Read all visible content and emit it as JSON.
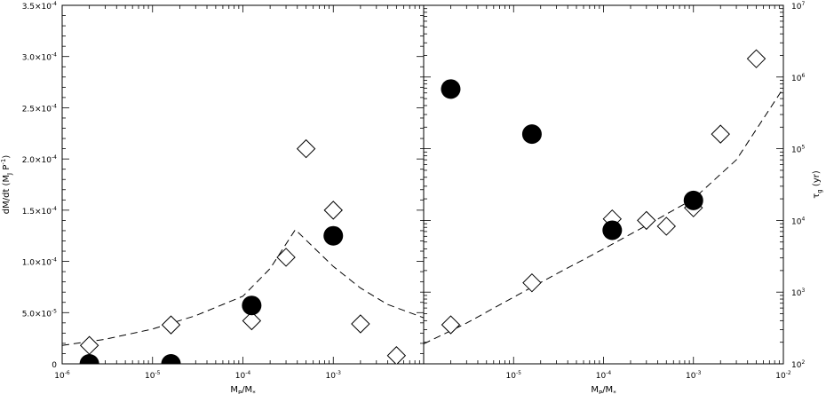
{
  "chart_data": [
    {
      "type": "scatter",
      "panel": "left",
      "title": "",
      "xlabel": "M_P/M_*",
      "ylabel": "dM/dt (M_J P^-1)",
      "xscale": "log",
      "yscale": "linear",
      "xlim": [
        1e-06,
        0.01
      ],
      "ylim": [
        0,
        0.00035
      ],
      "grid": false,
      "legend": "none",
      "x_tick_labels": [
        "10^-6",
        "10^-5",
        "10^-4",
        "10^-3"
      ],
      "y_tick_labels": [
        "0",
        "5.0×10^-5",
        "1.0×10^-4",
        "1.5×10^-4",
        "2.0×10^-4",
        "2.5×10^-4",
        "3.0×10^-4",
        "3.5×10^-4"
      ],
      "series": [
        {
          "marker": "filled-circle",
          "points": [
            {
              "x": 2e-06,
              "y": 0.0
            },
            {
              "x": 1.6e-05,
              "y": 0.0
            },
            {
              "x": 0.000125,
              "y": 5.7e-05
            },
            {
              "x": 0.001,
              "y": 0.000125
            }
          ]
        },
        {
          "marker": "open-diamond",
          "points": [
            {
              "x": 2e-06,
              "y": 1.8e-05
            },
            {
              "x": 1.6e-05,
              "y": 3.8e-05
            },
            {
              "x": 0.000125,
              "y": 4.2e-05
            },
            {
              "x": 0.0003,
              "y": 0.000104
            },
            {
              "x": 0.0005,
              "y": 0.00021
            },
            {
              "x": 0.001,
              "y": 0.00015
            },
            {
              "x": 0.002,
              "y": 3.9e-05
            },
            {
              "x": 0.005,
              "y": 8e-06
            }
          ]
        },
        {
          "marker": "dashed-line",
          "points": [
            {
              "x": 1e-06,
              "y": 1.8e-05
            },
            {
              "x": 3e-06,
              "y": 2.4e-05
            },
            {
              "x": 1e-05,
              "y": 3.4e-05
            },
            {
              "x": 3e-05,
              "y": 4.7e-05
            },
            {
              "x": 0.0001,
              "y": 6.6e-05
            },
            {
              "x": 0.0002,
              "y": 9.3e-05
            },
            {
              "x": 0.00038,
              "y": 0.000131
            },
            {
              "x": 0.0006,
              "y": 0.000114
            },
            {
              "x": 0.001,
              "y": 9.5e-05
            },
            {
              "x": 0.002,
              "y": 7.4e-05
            },
            {
              "x": 0.004,
              "y": 5.8e-05
            },
            {
              "x": 0.01,
              "y": 4.5e-05
            }
          ]
        }
      ]
    },
    {
      "type": "scatter",
      "panel": "right",
      "title": "",
      "xlabel": "M_P/M_*",
      "ylabel": "τ_g (yr)",
      "xscale": "log",
      "yscale": "log",
      "xlim": [
        1e-06,
        0.01
      ],
      "ylim": [
        100,
        10000000.0
      ],
      "grid": false,
      "legend": "none",
      "x_tick_labels": [
        "10^-5",
        "10^-4",
        "10^-3",
        "10^-2"
      ],
      "y_tick_labels": [
        "10^2",
        "10^3",
        "10^4",
        "10^5",
        "10^6",
        "10^7"
      ],
      "series": [
        {
          "marker": "filled-circle",
          "points": [
            {
              "x": 2e-06,
              "y": 680000
            },
            {
              "x": 1.6e-05,
              "y": 160000
            },
            {
              "x": 0.000125,
              "y": 7300
            },
            {
              "x": 0.001,
              "y": 19000
            }
          ]
        },
        {
          "marker": "open-diamond",
          "points": [
            {
              "x": 2e-06,
              "y": 350
            },
            {
              "x": 1.6e-05,
              "y": 1350
            },
            {
              "x": 0.000125,
              "y": 10500
            },
            {
              "x": 0.0003,
              "y": 10000
            },
            {
              "x": 0.0005,
              "y": 8300
            },
            {
              "x": 0.001,
              "y": 15000
            },
            {
              "x": 0.002,
              "y": 160000
            },
            {
              "x": 0.005,
              "y": 1800000
            }
          ]
        },
        {
          "marker": "dashed-line",
          "points": [
            {
              "x": 1e-06,
              "y": 190
            },
            {
              "x": 3e-06,
              "y": 370
            },
            {
              "x": 1e-05,
              "y": 850
            },
            {
              "x": 3e-05,
              "y": 1800
            },
            {
              "x": 0.0001,
              "y": 4000
            },
            {
              "x": 0.0003,
              "y": 8500
            },
            {
              "x": 0.001,
              "y": 20000
            },
            {
              "x": 0.003,
              "y": 70000
            },
            {
              "x": 0.01,
              "y": 700000
            }
          ]
        }
      ]
    }
  ],
  "colors": {
    "ink": "#000000",
    "paper": "#ffffff"
  }
}
